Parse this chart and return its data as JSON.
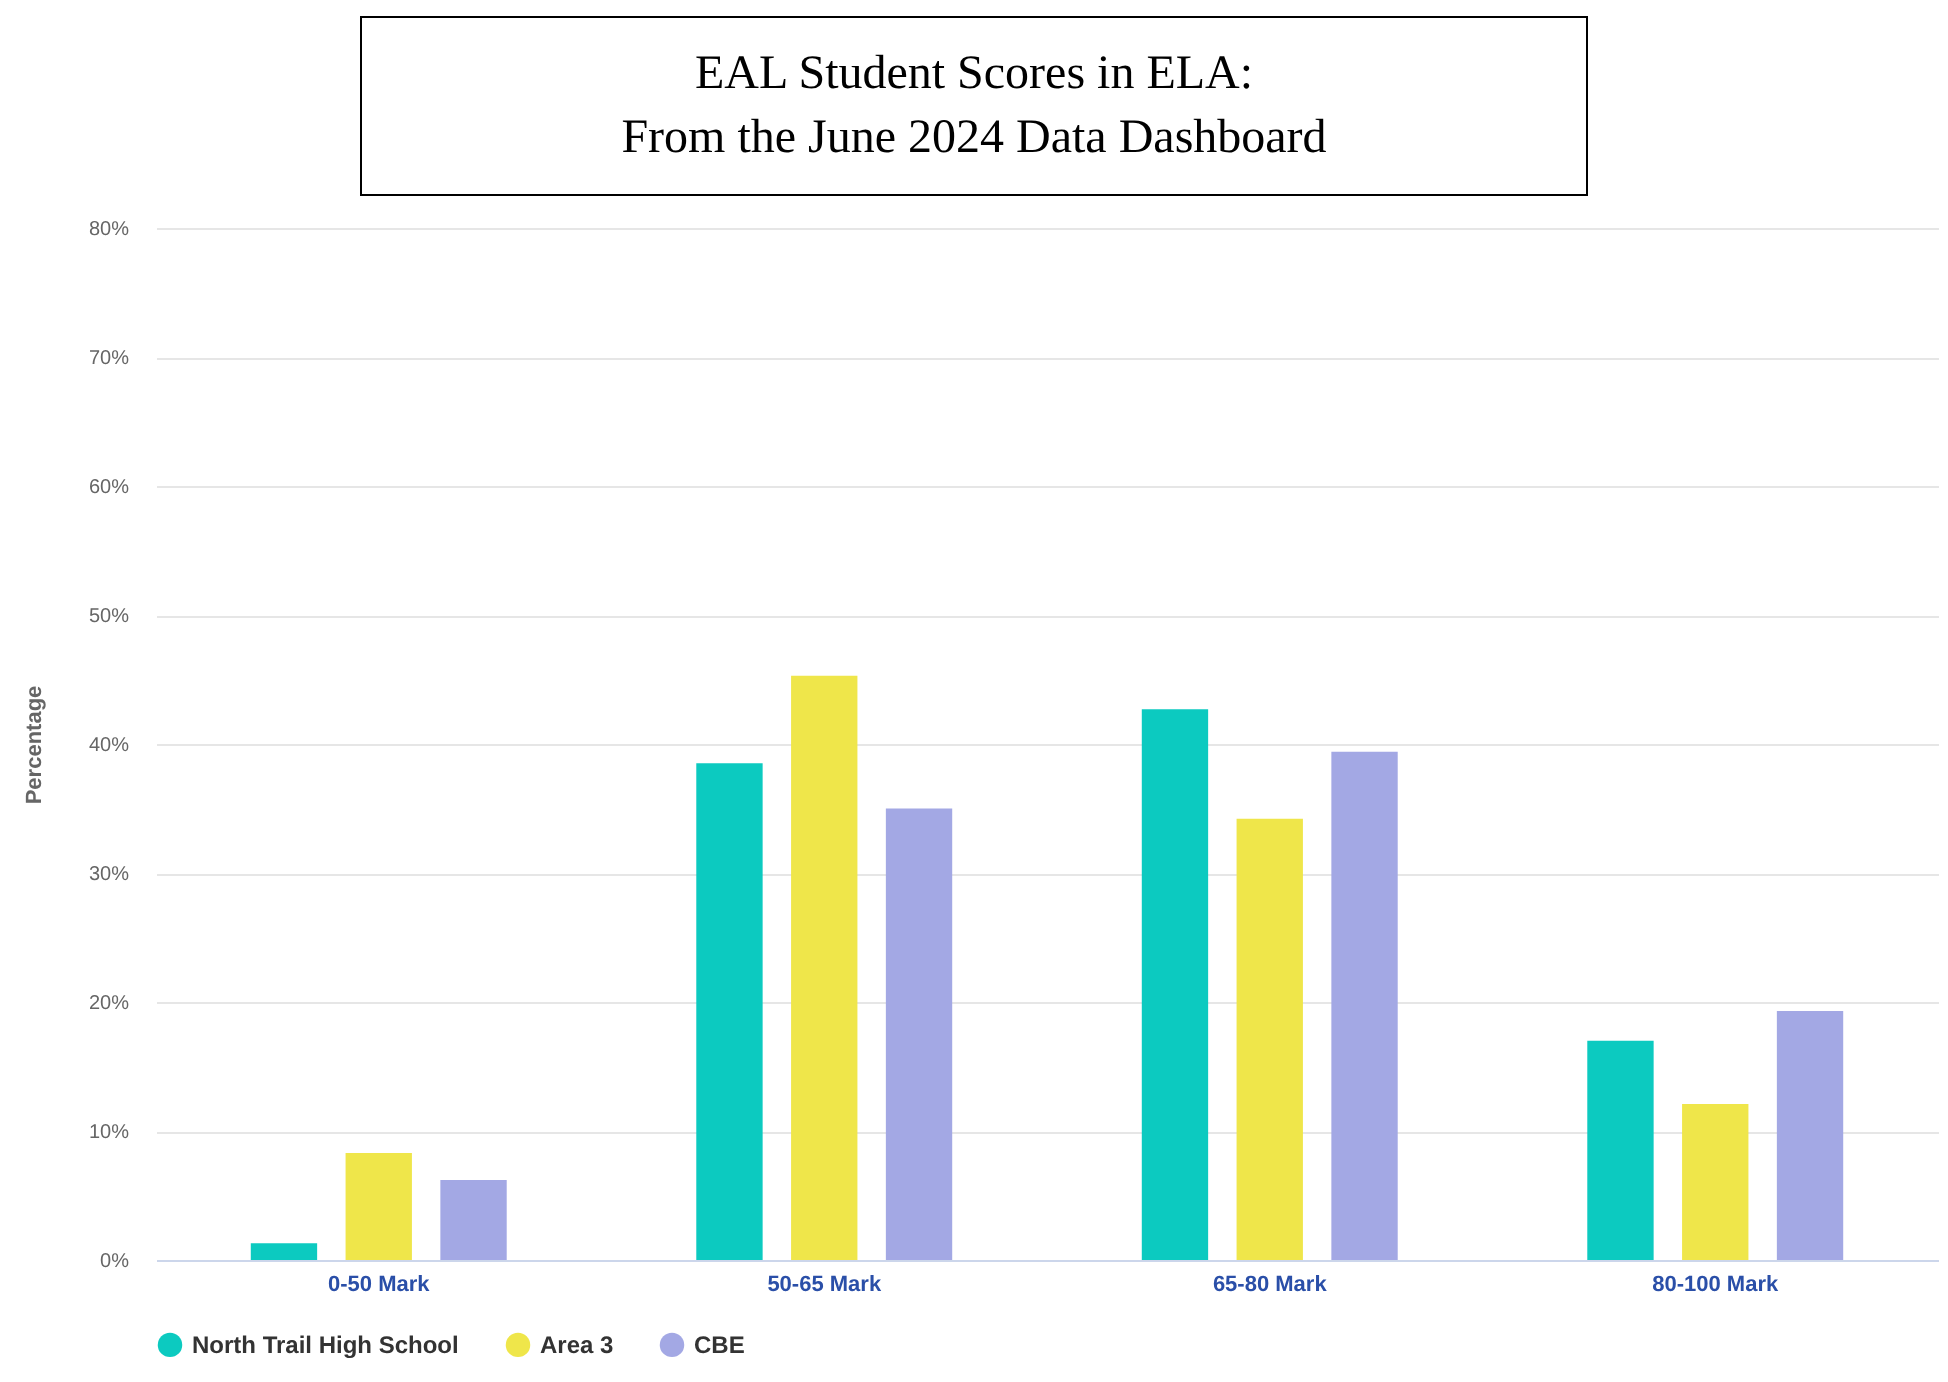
{
  "chart_data": {
    "type": "bar",
    "title": "EAL Student Scores in ELA:",
    "subtitle": "From the June 2024 Data Dashboard",
    "ylabel": "Percentage",
    "categories": [
      "0-50 Mark",
      "50-65 Mark",
      "65-80 Mark",
      "80-100 Mark"
    ],
    "series": [
      {
        "name": "North Trail High School",
        "color": "#0ccac0",
        "values": [
          1.3,
          38.5,
          42.7,
          17.0
        ]
      },
      {
        "name": "Area 3",
        "color": "#efe64a",
        "values": [
          8.3,
          45.3,
          34.2,
          12.1
        ]
      },
      {
        "name": "CBE",
        "color": "#a3a8e4",
        "values": [
          6.2,
          35.0,
          39.4,
          19.3
        ]
      }
    ],
    "ylim": [
      0,
      80
    ],
    "yticks": [
      {
        "value": 0,
        "label": "0%"
      },
      {
        "value": 10,
        "label": "10%"
      },
      {
        "value": 20,
        "label": "20%"
      },
      {
        "value": 30,
        "label": "30%"
      },
      {
        "value": 40,
        "label": "40%"
      },
      {
        "value": 50,
        "label": "50%"
      },
      {
        "value": 60,
        "label": "60%"
      },
      {
        "value": 70,
        "label": "70%"
      },
      {
        "value": 80,
        "label": "80%"
      }
    ],
    "grid": "y",
    "legend": "bottom"
  }
}
